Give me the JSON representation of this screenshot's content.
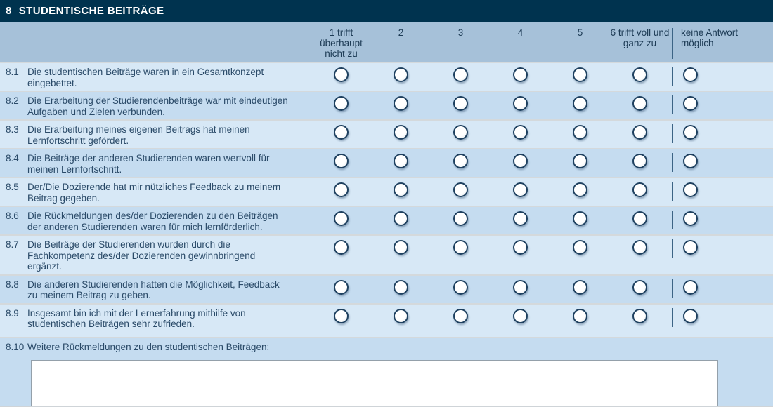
{
  "title_bar": {
    "number": "8",
    "title": "STUDENTISCHE BEITRÄGE"
  },
  "scale": {
    "columns": [
      "1 trifft überhaupt nicht zu",
      "2",
      "3",
      "4",
      "5",
      "6 trifft voll und ganz zu"
    ],
    "no_answer_label": "keine Antwort möglich"
  },
  "questions": [
    {
      "number": "8.1",
      "text": "Die studentischen Beiträge waren in ein Gesamtkonzept eingebettet."
    },
    {
      "number": "8.2",
      "text": "Die Erarbeitung der Studierendenbeiträge war mit eindeutigen Aufgaben und Zielen verbunden."
    },
    {
      "number": "8.3",
      "text": "Die Erarbeitung meines eigenen Beitrags hat meinen Lernfortschritt gefördert."
    },
    {
      "number": "8.4",
      "text": "Die Beiträge der anderen Studierenden waren wertvoll für meinen Lernfortschritt."
    },
    {
      "number": "8.5",
      "text": "Der/Die Dozierende hat mir nützliches Feedback zu meinem Beitrag gegeben."
    },
    {
      "number": "8.6",
      "text": "Die Rückmeldungen des/der Dozierenden zu den Beiträgen der anderen Studierenden waren für mich lernförderlich."
    },
    {
      "number": "8.7",
      "text": "Die Beiträge der Studierenden wurden durch die Fachkompetenz des/der Dozierenden gewinnbringend ergänzt."
    },
    {
      "number": "8.8",
      "text": "Die anderen Studierenden hatten die Möglichkeit, Feedback zu meinem Beitrag zu geben."
    },
    {
      "number": "8.9",
      "text": "Insgesamt bin ich mit der Lernerfahrung mithilfe von studentischen Beiträgen sehr zufrieden."
    }
  ],
  "open_question": {
    "number": "8.10",
    "label": "Weitere Rückmeldungen zu den studentischen Beiträgen:",
    "value": ""
  },
  "radio_state": "all-unselected",
  "colors": {
    "title_bar_bg": "#00334f",
    "header_band_bg": "#a6c1d9",
    "row_light": "#d7e8f6",
    "row_dark": "#c5dcf0",
    "radio_border": "#1e405f",
    "divider_line": "#3c6485",
    "text": "#2a4a68",
    "title_text": "#ffffff"
  }
}
